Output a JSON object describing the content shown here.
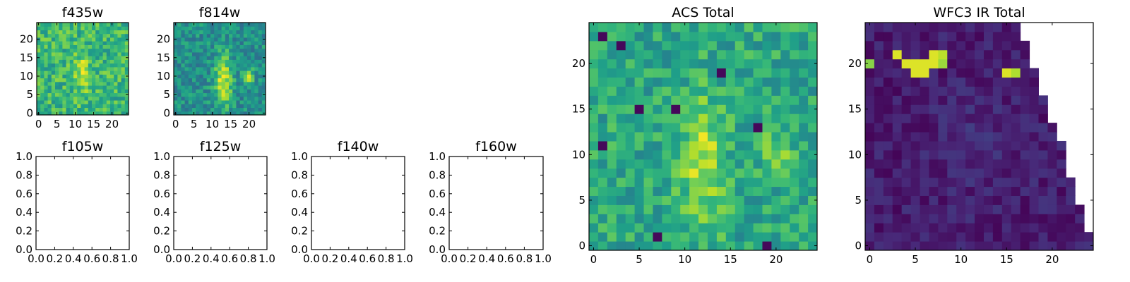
{
  "figure": {
    "colormap": "viridis",
    "colors": {
      "axis": "#000000",
      "background": "#ffffff"
    }
  },
  "chart_data": [
    {
      "id": "f435w",
      "type": "heatmap",
      "title": "f435w",
      "grid_size": 25,
      "xlim": [
        -0.5,
        24.5
      ],
      "ylim": [
        -0.5,
        24.5
      ],
      "xticks": [
        0,
        5,
        10,
        15,
        20
      ],
      "yticks": [
        0,
        5,
        10,
        15,
        20
      ],
      "value_range": [
        0,
        1
      ],
      "base_level": 0.66,
      "noise": 0.17,
      "seed": 11,
      "hotspots": [
        {
          "x": 12,
          "y": 11,
          "sx": 1.5,
          "sy": 4,
          "amp": 0.22
        }
      ]
    },
    {
      "id": "f814w",
      "type": "heatmap",
      "title": "f814w",
      "grid_size": 25,
      "xlim": [
        -0.5,
        24.5
      ],
      "ylim": [
        -0.5,
        24.5
      ],
      "xticks": [
        0,
        5,
        10,
        15,
        20
      ],
      "yticks": [
        0,
        5,
        10,
        15,
        20
      ],
      "value_range": [
        0,
        1
      ],
      "base_level": 0.5,
      "noise": 0.15,
      "seed": 23,
      "hotspots": [
        {
          "x": 13,
          "y": 9,
          "sx": 1.6,
          "sy": 5,
          "amp": 0.45
        },
        {
          "x": 20,
          "y": 10,
          "sx": 1,
          "sy": 1.5,
          "amp": 0.35
        }
      ]
    },
    {
      "id": "f105w",
      "type": "empty",
      "title": "f105w",
      "xlim": [
        0,
        1
      ],
      "ylim": [
        0,
        1
      ],
      "xticks": [
        "0.0",
        "0.2",
        "0.4",
        "0.6",
        "0.8",
        "1.0"
      ],
      "yticks": [
        "0.0",
        "0.2",
        "0.4",
        "0.6",
        "0.8",
        "1.0"
      ]
    },
    {
      "id": "f125w",
      "type": "empty",
      "title": "f125w",
      "xlim": [
        0,
        1
      ],
      "ylim": [
        0,
        1
      ],
      "xticks": [
        "0.0",
        "0.2",
        "0.4",
        "0.6",
        "0.8",
        "1.0"
      ],
      "yticks": [
        "0.0",
        "0.2",
        "0.4",
        "0.6",
        "0.8",
        "1.0"
      ]
    },
    {
      "id": "f140w",
      "type": "empty",
      "title": "f140w",
      "xlim": [
        0,
        1
      ],
      "ylim": [
        0,
        1
      ],
      "xticks": [
        "0.0",
        "0.2",
        "0.4",
        "0.6",
        "0.8",
        "1.0"
      ],
      "yticks": [
        "0.0",
        "0.2",
        "0.4",
        "0.6",
        "0.8",
        "1.0"
      ]
    },
    {
      "id": "f160w",
      "type": "empty",
      "title": "f160w",
      "xlim": [
        0,
        1
      ],
      "ylim": [
        0,
        1
      ],
      "xticks": [
        "0.0",
        "0.2",
        "0.4",
        "0.6",
        "0.8",
        "1.0"
      ],
      "yticks": [
        "0.0",
        "0.2",
        "0.4",
        "0.6",
        "0.8",
        "1.0"
      ]
    },
    {
      "id": "acs_total",
      "type": "heatmap",
      "title": "ACS Total",
      "grid_size": 25,
      "xlim": [
        -0.5,
        24.5
      ],
      "ylim": [
        -0.5,
        24.5
      ],
      "xticks": [
        0,
        5,
        10,
        15,
        20
      ],
      "yticks": [
        0,
        5,
        10,
        15,
        20
      ],
      "value_range": [
        0,
        1
      ],
      "base_level": 0.6,
      "noise": 0.15,
      "seed": 37,
      "hotspots": [
        {
          "x": 12,
          "y": 9,
          "sx": 1.6,
          "sy": 5,
          "amp": 0.3
        },
        {
          "x": 20,
          "y": 10,
          "sx": 1,
          "sy": 1.6,
          "amp": 0.25
        }
      ],
      "dark_cells": [
        [
          1,
          23
        ],
        [
          3,
          22
        ],
        [
          5,
          15
        ],
        [
          9,
          15
        ],
        [
          14,
          19
        ],
        [
          18,
          13
        ],
        [
          7,
          1
        ],
        [
          19,
          0
        ],
        [
          1,
          11
        ]
      ]
    },
    {
      "id": "wfc3_ir_total",
      "type": "heatmap",
      "title": "WFC3 IR Total",
      "grid_size": 25,
      "xlim": [
        -0.5,
        24.5
      ],
      "ylim": [
        -0.5,
        24.5
      ],
      "xticks": [
        0,
        5,
        10,
        15,
        20
      ],
      "yticks": [
        0,
        5,
        10,
        15,
        20
      ],
      "value_range": [
        0,
        1
      ],
      "base_level": 0.08,
      "noise": 0.07,
      "seed": 51,
      "hotspots": [
        {
          "x": 12,
          "y": 11,
          "sx": 3,
          "sy": 4,
          "amp": 0.05
        }
      ],
      "bright_cells": [
        [
          0,
          20,
          0.82
        ],
        [
          3,
          21,
          0.95
        ],
        [
          4,
          20,
          0.95
        ],
        [
          5,
          20,
          0.95
        ],
        [
          5,
          19,
          0.95
        ],
        [
          6,
          19,
          0.95
        ],
        [
          6,
          20,
          0.95
        ],
        [
          7,
          20,
          0.95
        ],
        [
          7,
          21,
          0.95
        ],
        [
          8,
          21,
          0.9
        ],
        [
          8,
          20,
          0.85
        ],
        [
          15,
          19,
          0.95
        ],
        [
          16,
          19,
          0.88
        ]
      ],
      "masked_region": {
        "description": "blank (NaN) region at upper right",
        "last_valid_column_by_row": [
          24,
          24,
          23,
          23,
          23,
          22,
          22,
          22,
          21,
          21,
          21,
          21,
          20,
          20,
          19,
          19,
          19,
          18,
          18,
          18,
          17,
          17,
          17,
          16,
          16
        ]
      }
    }
  ]
}
